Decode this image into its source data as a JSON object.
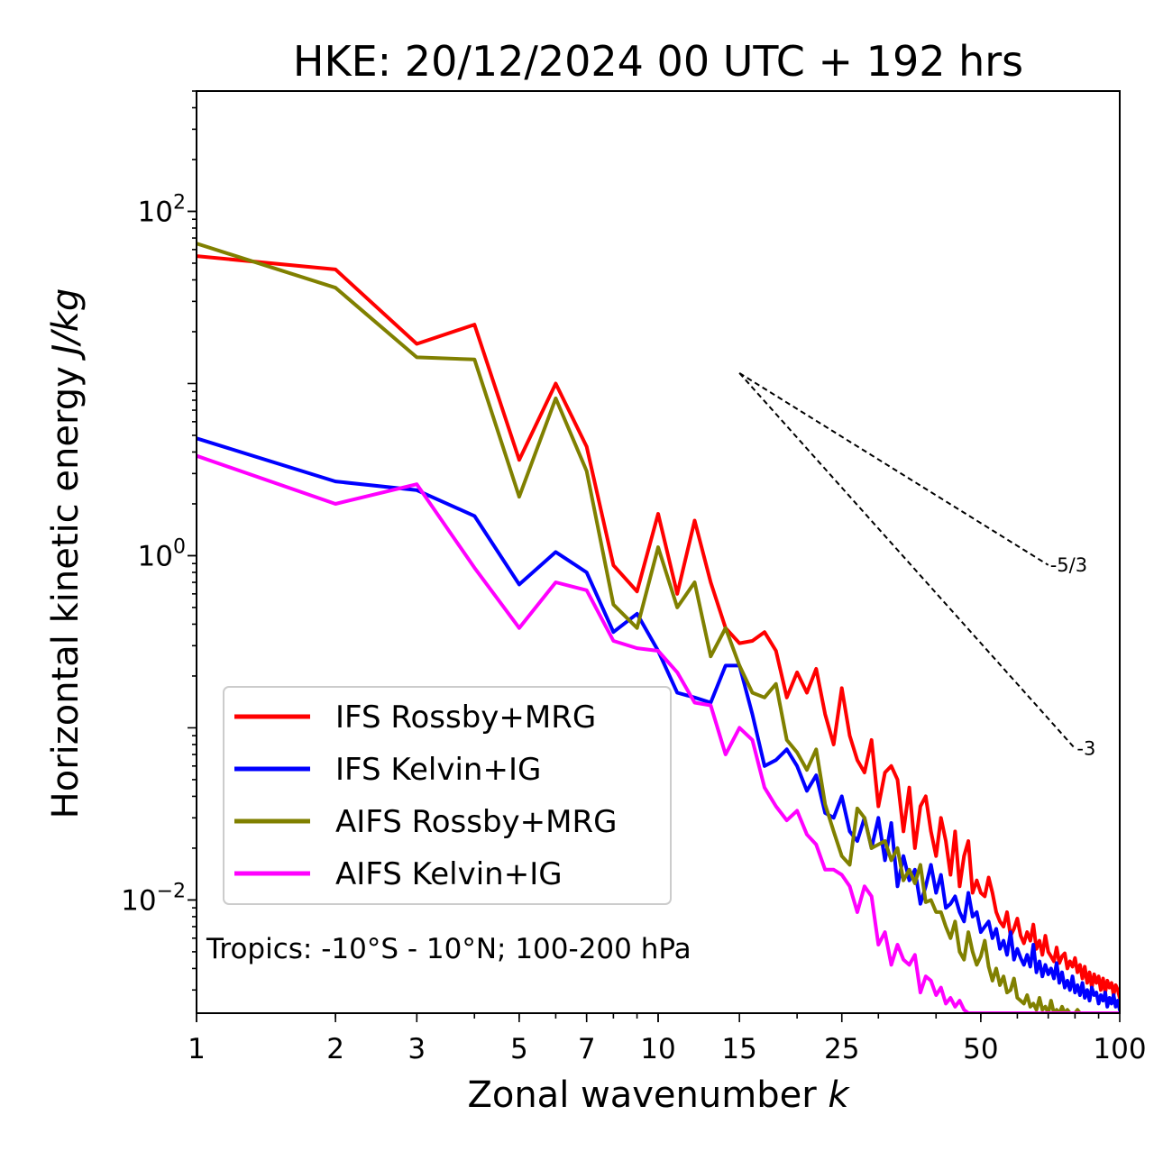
{
  "chart_data": {
    "type": "line",
    "title": "HKE: 20/12/2024 00 UTC + 192 hrs",
    "xlabel": "Zonal wavenumber ",
    "xlabel_italic": "k",
    "ylabel": "Horizontal kinetic energy ",
    "ylabel_italic": "J/kg",
    "x_scale": "log",
    "y_scale": "log",
    "xlim": [
      1,
      100
    ],
    "ylim": [
      0.0022,
      500
    ],
    "x_ticks": [
      {
        "value": 1,
        "label": "1"
      },
      {
        "value": 2,
        "label": "2"
      },
      {
        "value": 3,
        "label": "3"
      },
      {
        "value": 5,
        "label": "5"
      },
      {
        "value": 7,
        "label": "7"
      },
      {
        "value": 10,
        "label": "10"
      },
      {
        "value": 15,
        "label": "15"
      },
      {
        "value": 25,
        "label": "25"
      },
      {
        "value": 50,
        "label": "50"
      },
      {
        "value": 100,
        "label": "100"
      }
    ],
    "y_ticks": [
      {
        "value": 0.01,
        "base": "10",
        "exp": "−2"
      },
      {
        "value": 1,
        "base": "10",
        "exp": "0"
      },
      {
        "value": 100,
        "base": "10",
        "exp": "2"
      }
    ],
    "grid": false,
    "legend_position": "lower-left",
    "annotation": "Tropics: -10°S - 10°N; 100-200 hPa",
    "reference_slopes": [
      {
        "label": "-5/3",
        "slope": -1.6667,
        "x_start": 15,
        "x_end": 70,
        "y_start": 11.5
      },
      {
        "label": "-3",
        "slope": -3,
        "x_start": 15,
        "x_end": 80,
        "y_start": 11.5
      }
    ],
    "series": [
      {
        "name": "IFS Rossby+MRG",
        "color": "#ff0000",
        "x": [
          1,
          2,
          3,
          4,
          5,
          6,
          7,
          8,
          9,
          10,
          11,
          12,
          13,
          14,
          15,
          16,
          17,
          18,
          19,
          20,
          21,
          22,
          23,
          24,
          25,
          26,
          27,
          28,
          29,
          30,
          31,
          32,
          33,
          34,
          35,
          36,
          37,
          38,
          39,
          40,
          41,
          42,
          43,
          44,
          45,
          46,
          47,
          48,
          49,
          50,
          51,
          52,
          53,
          54,
          55,
          56,
          57,
          58,
          59,
          60,
          61,
          62,
          63,
          64,
          65,
          66,
          67,
          68,
          69,
          70,
          71,
          72,
          73,
          74,
          75,
          76,
          77,
          78,
          79,
          80,
          81,
          82,
          83,
          84,
          85,
          86,
          87,
          88,
          89,
          90,
          91,
          92,
          93,
          94,
          95,
          96,
          97,
          98,
          99,
          100
        ],
        "y": [
          55,
          46,
          17,
          22,
          3.6,
          10,
          4.3,
          0.88,
          0.62,
          1.75,
          0.6,
          1.6,
          0.7,
          0.38,
          0.31,
          0.32,
          0.36,
          0.28,
          0.15,
          0.21,
          0.16,
          0.22,
          0.12,
          0.08,
          0.17,
          0.09,
          0.065,
          0.055,
          0.085,
          0.035,
          0.055,
          0.06,
          0.05,
          0.025,
          0.045,
          0.02,
          0.035,
          0.04,
          0.025,
          0.018,
          0.03,
          0.022,
          0.014,
          0.025,
          0.012,
          0.018,
          0.022,
          0.011,
          0.013,
          0.011,
          0.0105,
          0.0135,
          0.011,
          0.0085,
          0.0075,
          0.007,
          0.0085,
          0.0062,
          0.0068,
          0.0078,
          0.0062,
          0.0056,
          0.0065,
          0.0058,
          0.0072,
          0.0052,
          0.0058,
          0.0048,
          0.0062,
          0.005,
          0.0047,
          0.0044,
          0.0053,
          0.0043,
          0.0047,
          0.0049,
          0.004,
          0.0044,
          0.0041,
          0.0046,
          0.0038,
          0.0042,
          0.0035,
          0.0041,
          0.0033,
          0.0038,
          0.0031,
          0.0037,
          0.0033,
          0.0036,
          0.003,
          0.0035,
          0.0029,
          0.0034,
          0.0031,
          0.0033,
          0.0028,
          0.0032,
          0.003,
          0.0027
        ]
      },
      {
        "name": "IFS Kelvin+IG",
        "color": "#0000ff",
        "x": [
          1,
          2,
          3,
          4,
          5,
          6,
          7,
          8,
          9,
          10,
          11,
          12,
          13,
          14,
          15,
          16,
          17,
          18,
          19,
          20,
          21,
          22,
          23,
          24,
          25,
          26,
          27,
          28,
          29,
          30,
          31,
          32,
          33,
          34,
          35,
          36,
          37,
          38,
          39,
          40,
          41,
          42,
          43,
          44,
          45,
          46,
          47,
          48,
          49,
          50,
          51,
          52,
          53,
          54,
          55,
          56,
          57,
          58,
          59,
          60,
          61,
          62,
          63,
          64,
          65,
          66,
          67,
          68,
          69,
          70,
          71,
          72,
          73,
          74,
          75,
          76,
          77,
          78,
          79,
          80,
          81,
          82,
          83,
          84,
          85,
          86,
          87,
          88,
          89,
          90,
          91,
          92,
          93,
          94,
          95,
          96,
          97,
          98,
          99,
          100
        ],
        "y": [
          4.8,
          2.7,
          2.4,
          1.7,
          0.68,
          1.05,
          0.8,
          0.36,
          0.46,
          0.28,
          0.16,
          0.15,
          0.14,
          0.23,
          0.23,
          0.12,
          0.06,
          0.065,
          0.075,
          0.06,
          0.043,
          0.053,
          0.032,
          0.03,
          0.04,
          0.025,
          0.022,
          0.03,
          0.02,
          0.03,
          0.017,
          0.028,
          0.012,
          0.018,
          0.013,
          0.015,
          0.0095,
          0.012,
          0.016,
          0.011,
          0.014,
          0.009,
          0.0095,
          0.0105,
          0.0085,
          0.0075,
          0.011,
          0.008,
          0.0085,
          0.0065,
          0.007,
          0.0075,
          0.006,
          0.0068,
          0.0052,
          0.0058,
          0.0048,
          0.0065,
          0.0045,
          0.0052,
          0.0046,
          0.0042,
          0.0048,
          0.0041,
          0.0055,
          0.0038,
          0.0044,
          0.0036,
          0.0042,
          0.0037,
          0.004,
          0.0035,
          0.0043,
          0.0033,
          0.0038,
          0.0031,
          0.0034,
          0.003,
          0.0036,
          0.0029,
          0.0032,
          0.0028,
          0.0033,
          0.0027,
          0.003,
          0.0026,
          0.0031,
          0.0028,
          0.0029,
          0.0025,
          0.0028,
          0.0026,
          0.0029,
          0.0024,
          0.0027,
          0.0025,
          0.0028,
          0.0024,
          0.0026,
          0.0023
        ]
      },
      {
        "name": "AIFS Rossby+MRG",
        "color": "#808000",
        "x": [
          1,
          2,
          3,
          4,
          5,
          6,
          7,
          8,
          9,
          10,
          11,
          12,
          13,
          14,
          15,
          16,
          17,
          18,
          19,
          20,
          21,
          22,
          23,
          24,
          25,
          26,
          27,
          28,
          29,
          30,
          31,
          32,
          33,
          34,
          35,
          36,
          37,
          38,
          39,
          40,
          41,
          42,
          43,
          44,
          45,
          46,
          47,
          48,
          49,
          50,
          51,
          52,
          53,
          54,
          55,
          56,
          57,
          58,
          59,
          60,
          61,
          62,
          63,
          64,
          65,
          66,
          67,
          68,
          69,
          70,
          71,
          72,
          73,
          74,
          75,
          76,
          77,
          78,
          79,
          80,
          81,
          82,
          83,
          84,
          85,
          86,
          87,
          88,
          89,
          90,
          91,
          92,
          93,
          94,
          95,
          96,
          97,
          98,
          99,
          100
        ],
        "y": [
          65,
          36,
          14.2,
          13.8,
          2.2,
          8.2,
          3.1,
          0.52,
          0.38,
          1.12,
          0.5,
          0.7,
          0.26,
          0.38,
          0.23,
          0.16,
          0.15,
          0.18,
          0.085,
          0.072,
          0.057,
          0.075,
          0.036,
          0.025,
          0.018,
          0.016,
          0.034,
          0.03,
          0.02,
          0.021,
          0.022,
          0.017,
          0.02,
          0.013,
          0.015,
          0.0125,
          0.016,
          0.0097,
          0.01,
          0.0085,
          0.0085,
          0.007,
          0.006,
          0.0075,
          0.005,
          0.0045,
          0.0065,
          0.005,
          0.0042,
          0.0047,
          0.0058,
          0.0041,
          0.0034,
          0.004,
          0.0032,
          0.0036,
          0.0029,
          0.003,
          0.0035,
          0.0027,
          0.0026,
          0.0025,
          0.0028,
          0.0024,
          0.0025,
          0.0023,
          0.0027,
          0.0023,
          0.0024,
          0.0022,
          0.0026,
          0.0022,
          0.0023,
          0.0022,
          0.0024,
          0.0022,
          0.0023,
          0.0022,
          0.0022,
          0.0022,
          0.0023,
          0.0022,
          0.0022,
          0.0022,
          0.0022,
          0.0022,
          0.0022,
          0.0022,
          0.0022,
          0.0022,
          0.0022,
          0.0022,
          0.0022,
          0.0022,
          0.0022,
          0.0022,
          0.0022,
          0.0022,
          0.0022,
          0.0022
        ]
      },
      {
        "name": "AIFS Kelvin+IG",
        "color": "#ff00ff",
        "x": [
          1,
          2,
          3,
          4,
          5,
          6,
          7,
          8,
          9,
          10,
          11,
          12,
          13,
          14,
          15,
          16,
          17,
          18,
          19,
          20,
          21,
          22,
          23,
          24,
          25,
          26,
          27,
          28,
          29,
          30,
          31,
          32,
          33,
          34,
          35,
          36,
          37,
          38,
          39,
          40,
          41,
          42,
          43,
          44,
          45,
          46,
          47,
          48,
          49,
          50,
          51,
          52,
          53,
          54,
          55,
          56,
          57,
          58,
          59,
          60,
          61,
          62,
          63,
          64,
          65,
          66,
          67,
          68,
          69,
          70,
          71,
          72,
          73,
          74,
          75,
          76,
          77,
          78,
          79,
          80,
          81,
          82,
          83,
          84,
          85,
          86,
          87,
          88,
          89,
          90,
          91,
          92,
          93,
          94,
          95,
          96,
          97,
          98,
          99,
          100
        ],
        "y": [
          3.8,
          2.0,
          2.6,
          0.85,
          0.38,
          0.7,
          0.63,
          0.32,
          0.29,
          0.28,
          0.21,
          0.14,
          0.135,
          0.07,
          0.1,
          0.085,
          0.045,
          0.035,
          0.029,
          0.033,
          0.024,
          0.021,
          0.015,
          0.015,
          0.014,
          0.012,
          0.0085,
          0.012,
          0.0105,
          0.0055,
          0.0065,
          0.0042,
          0.0055,
          0.0045,
          0.0042,
          0.0048,
          0.0029,
          0.0036,
          0.0034,
          0.0028,
          0.0031,
          0.0025,
          0.0027,
          0.0024,
          0.0026,
          0.0023,
          0.0022,
          0.0022,
          0.0022,
          0.0022,
          0.0022,
          0.0022,
          0.0022,
          0.0022,
          0.0022,
          0.0022,
          0.0022,
          0.0022,
          0.0022,
          0.0022,
          0.0022,
          0.0022,
          0.0022,
          0.0022,
          0.0022,
          0.0022,
          0.0022,
          0.0022,
          0.0022,
          0.0022,
          0.0022,
          0.0022,
          0.0022,
          0.0022,
          0.0022,
          0.0022,
          0.0022,
          0.0022,
          0.0022,
          0.0022,
          0.0022,
          0.0022,
          0.0022,
          0.0022,
          0.0022,
          0.0022,
          0.0022,
          0.0022,
          0.0022,
          0.0022,
          0.0022,
          0.0022,
          0.0022,
          0.0022,
          0.0022,
          0.0022,
          0.0022,
          0.0022,
          0.0022,
          0.0022
        ]
      }
    ]
  }
}
